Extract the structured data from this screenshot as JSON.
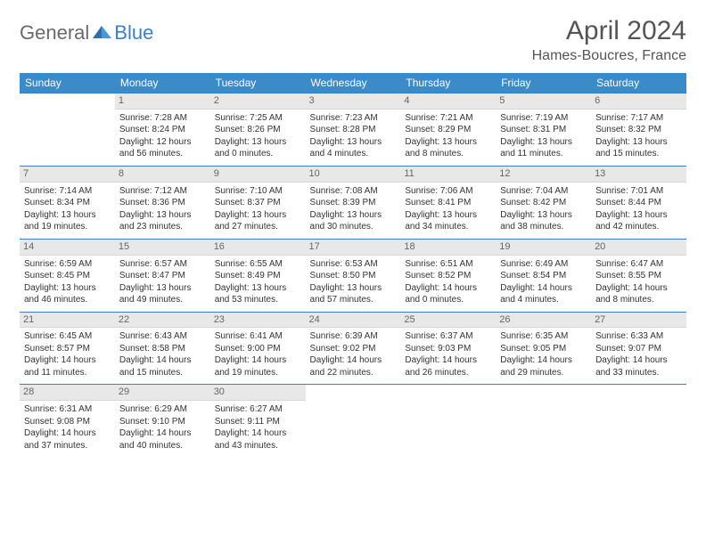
{
  "logo": {
    "general": "General",
    "blue": "Blue"
  },
  "title": "April 2024",
  "location": "Hames-Boucres, France",
  "colors": {
    "header_bg": "#3b8bc9",
    "rule": "#3b7fc4",
    "daynum_bg": "#e8e8e8",
    "text": "#333333"
  },
  "weekdays": [
    "Sunday",
    "Monday",
    "Tuesday",
    "Wednesday",
    "Thursday",
    "Friday",
    "Saturday"
  ],
  "weeks": [
    [
      {
        "blank": true
      },
      {
        "day": "1",
        "sunrise": "7:28 AM",
        "sunset": "8:24 PM",
        "daylight": "12 hours and 56 minutes."
      },
      {
        "day": "2",
        "sunrise": "7:25 AM",
        "sunset": "8:26 PM",
        "daylight": "13 hours and 0 minutes."
      },
      {
        "day": "3",
        "sunrise": "7:23 AM",
        "sunset": "8:28 PM",
        "daylight": "13 hours and 4 minutes."
      },
      {
        "day": "4",
        "sunrise": "7:21 AM",
        "sunset": "8:29 PM",
        "daylight": "13 hours and 8 minutes."
      },
      {
        "day": "5",
        "sunrise": "7:19 AM",
        "sunset": "8:31 PM",
        "daylight": "13 hours and 11 minutes."
      },
      {
        "day": "6",
        "sunrise": "7:17 AM",
        "sunset": "8:32 PM",
        "daylight": "13 hours and 15 minutes."
      }
    ],
    [
      {
        "day": "7",
        "sunrise": "7:14 AM",
        "sunset": "8:34 PM",
        "daylight": "13 hours and 19 minutes."
      },
      {
        "day": "8",
        "sunrise": "7:12 AM",
        "sunset": "8:36 PM",
        "daylight": "13 hours and 23 minutes."
      },
      {
        "day": "9",
        "sunrise": "7:10 AM",
        "sunset": "8:37 PM",
        "daylight": "13 hours and 27 minutes."
      },
      {
        "day": "10",
        "sunrise": "7:08 AM",
        "sunset": "8:39 PM",
        "daylight": "13 hours and 30 minutes."
      },
      {
        "day": "11",
        "sunrise": "7:06 AM",
        "sunset": "8:41 PM",
        "daylight": "13 hours and 34 minutes."
      },
      {
        "day": "12",
        "sunrise": "7:04 AM",
        "sunset": "8:42 PM",
        "daylight": "13 hours and 38 minutes."
      },
      {
        "day": "13",
        "sunrise": "7:01 AM",
        "sunset": "8:44 PM",
        "daylight": "13 hours and 42 minutes."
      }
    ],
    [
      {
        "day": "14",
        "sunrise": "6:59 AM",
        "sunset": "8:45 PM",
        "daylight": "13 hours and 46 minutes."
      },
      {
        "day": "15",
        "sunrise": "6:57 AM",
        "sunset": "8:47 PM",
        "daylight": "13 hours and 49 minutes."
      },
      {
        "day": "16",
        "sunrise": "6:55 AM",
        "sunset": "8:49 PM",
        "daylight": "13 hours and 53 minutes."
      },
      {
        "day": "17",
        "sunrise": "6:53 AM",
        "sunset": "8:50 PM",
        "daylight": "13 hours and 57 minutes."
      },
      {
        "day": "18",
        "sunrise": "6:51 AM",
        "sunset": "8:52 PM",
        "daylight": "14 hours and 0 minutes."
      },
      {
        "day": "19",
        "sunrise": "6:49 AM",
        "sunset": "8:54 PM",
        "daylight": "14 hours and 4 minutes."
      },
      {
        "day": "20",
        "sunrise": "6:47 AM",
        "sunset": "8:55 PM",
        "daylight": "14 hours and 8 minutes."
      }
    ],
    [
      {
        "day": "21",
        "sunrise": "6:45 AM",
        "sunset": "8:57 PM",
        "daylight": "14 hours and 11 minutes."
      },
      {
        "day": "22",
        "sunrise": "6:43 AM",
        "sunset": "8:58 PM",
        "daylight": "14 hours and 15 minutes."
      },
      {
        "day": "23",
        "sunrise": "6:41 AM",
        "sunset": "9:00 PM",
        "daylight": "14 hours and 19 minutes."
      },
      {
        "day": "24",
        "sunrise": "6:39 AM",
        "sunset": "9:02 PM",
        "daylight": "14 hours and 22 minutes."
      },
      {
        "day": "25",
        "sunrise": "6:37 AM",
        "sunset": "9:03 PM",
        "daylight": "14 hours and 26 minutes."
      },
      {
        "day": "26",
        "sunrise": "6:35 AM",
        "sunset": "9:05 PM",
        "daylight": "14 hours and 29 minutes."
      },
      {
        "day": "27",
        "sunrise": "6:33 AM",
        "sunset": "9:07 PM",
        "daylight": "14 hours and 33 minutes."
      }
    ],
    [
      {
        "day": "28",
        "sunrise": "6:31 AM",
        "sunset": "9:08 PM",
        "daylight": "14 hours and 37 minutes."
      },
      {
        "day": "29",
        "sunrise": "6:29 AM",
        "sunset": "9:10 PM",
        "daylight": "14 hours and 40 minutes."
      },
      {
        "day": "30",
        "sunrise": "6:27 AM",
        "sunset": "9:11 PM",
        "daylight": "14 hours and 43 minutes."
      },
      {
        "blank": true
      },
      {
        "blank": true
      },
      {
        "blank": true
      },
      {
        "blank": true
      }
    ]
  ],
  "labels": {
    "sunrise": "Sunrise: ",
    "sunset": "Sunset: ",
    "daylight": "Daylight: "
  }
}
